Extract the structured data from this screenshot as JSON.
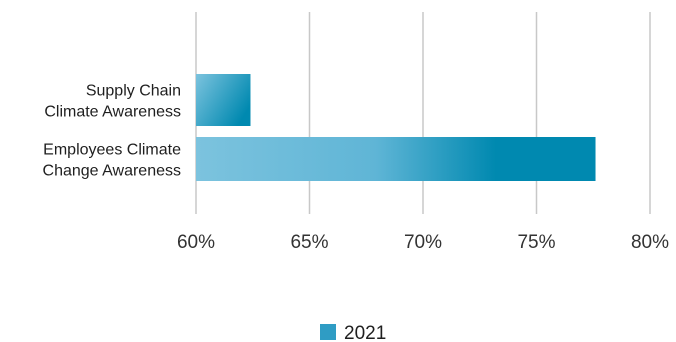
{
  "chart_data": {
    "type": "bar",
    "orientation": "horizontal",
    "categories": [
      [
        "Supply Chain",
        "Climate Awareness"
      ],
      [
        "Employees Climate",
        "Change Awareness"
      ]
    ],
    "series": [
      {
        "name": "2021",
        "values": [
          62.4,
          77.6
        ]
      }
    ],
    "x_ticks": [
      "60%",
      "65%",
      "70%",
      "75%",
      "80%"
    ],
    "x_tick_values": [
      60,
      65,
      70,
      75,
      80
    ],
    "xlim": [
      60,
      80
    ],
    "grid": "vertical",
    "legend_position": "bottom-center",
    "colors": {
      "bar_light": "#7cc3de",
      "bar_dark": "#0089b0",
      "legend_swatch": "#2f9cc4",
      "grid": "#c8c8c8"
    }
  }
}
